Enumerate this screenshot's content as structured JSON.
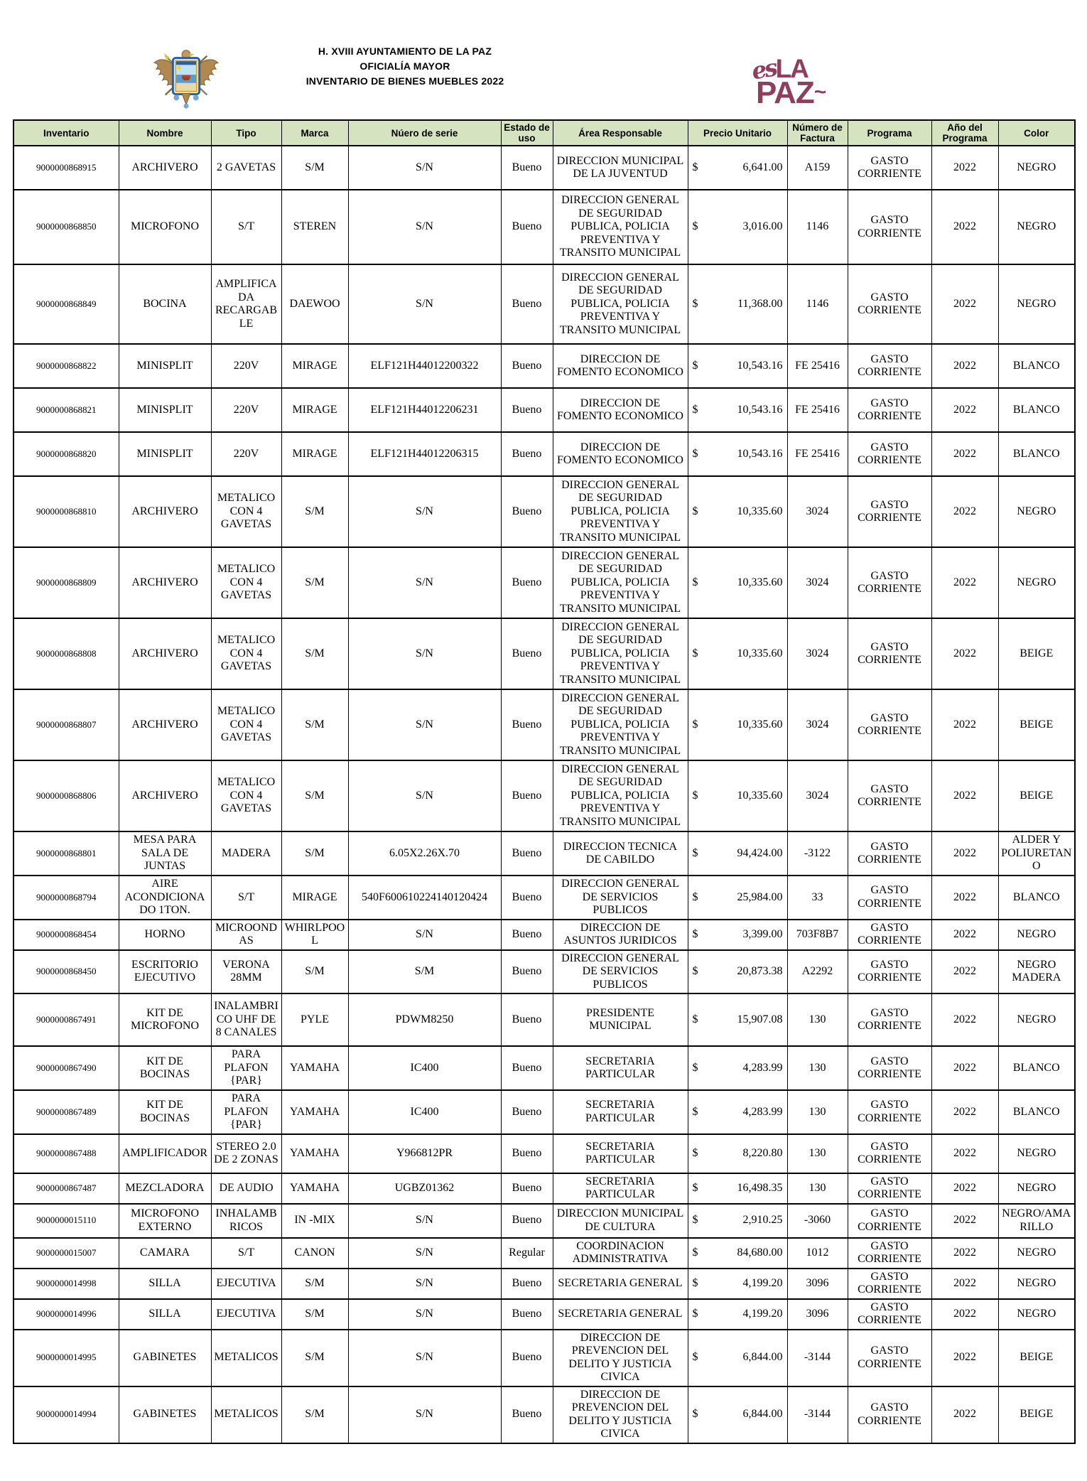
{
  "header": {
    "title_line1": "H. XVIII AYUNTAMIENTO DE LA PAZ",
    "title_line2": "OFICIALÍA MAYOR",
    "title_line3": "INVENTARIO DE BIENES MUEBLES 2022",
    "crest_name": "escudo-la-paz",
    "logo": {
      "part_es": "es",
      "part_la": "LA",
      "part_paz": "PAZ",
      "part_tilde": "~",
      "color": "#8d3f5d"
    }
  },
  "table": {
    "header_bg": "#d6e3c0",
    "currency_symbol": "$",
    "columns": [
      "Inventario",
      "Nombre",
      "Tipo",
      "Marca",
      "Núero de serie",
      "Estado de uso",
      "Área Responsable",
      "Precio Unitario",
      "Número de Factura",
      "Programa",
      "Año del Programa",
      "Color"
    ],
    "rows": [
      {
        "inventario": "9000000868915",
        "nombre": "ARCHIVERO",
        "tipo": "2 GAVETAS",
        "marca": "S/M",
        "serie": "S/N",
        "estado": "Bueno",
        "area": "DIRECCION MUNICIPAL DE LA JUVENTUD",
        "precio": "6,641.00",
        "factura": "A159",
        "programa": "GASTO CORRIENTE",
        "anio": "2022",
        "color": "NEGRO"
      },
      {
        "inventario": "9000000868850",
        "nombre": "MICROFONO",
        "tipo": "S/T",
        "marca": "STEREN",
        "serie": "S/N",
        "estado": "Bueno",
        "area": "DIRECCION GENERAL DE SEGURIDAD PUBLICA, POLICIA PREVENTIVA Y TRANSITO MUNICIPAL",
        "precio": "3,016.00",
        "factura": "1146",
        "programa": "GASTO CORRIENTE",
        "anio": "2022",
        "color": "NEGRO"
      },
      {
        "inventario": "9000000868849",
        "nombre": "BOCINA",
        "tipo": "AMPLIFICADA RECARGABLE",
        "marca": "DAEWOO",
        "serie": "S/N",
        "estado": "Bueno",
        "area": "DIRECCION GENERAL DE SEGURIDAD PUBLICA, POLICIA PREVENTIVA Y TRANSITO MUNICIPAL",
        "precio": "11,368.00",
        "factura": "1146",
        "programa": "GASTO CORRIENTE",
        "anio": "2022",
        "color": "NEGRO"
      },
      {
        "inventario": "9000000868822",
        "nombre": "MINISPLIT",
        "tipo": "220V",
        "marca": "MIRAGE",
        "serie": "ELF121H44012200322",
        "estado": "Bueno",
        "area": "DIRECCION DE FOMENTO ECONOMICO",
        "precio": "10,543.16",
        "factura": "FE 25416",
        "programa": "GASTO CORRIENTE",
        "anio": "2022",
        "color": "BLANCO"
      },
      {
        "inventario": "9000000868821",
        "nombre": "MINISPLIT",
        "tipo": "220V",
        "marca": "MIRAGE",
        "serie": "ELF121H44012206231",
        "estado": "Bueno",
        "area": "DIRECCION DE FOMENTO ECONOMICO",
        "precio": "10,543.16",
        "factura": "FE 25416",
        "programa": "GASTO CORRIENTE",
        "anio": "2022",
        "color": "BLANCO"
      },
      {
        "inventario": "9000000868820",
        "nombre": "MINISPLIT",
        "tipo": "220V",
        "marca": "MIRAGE",
        "serie": "ELF121H44012206315",
        "estado": "Bueno",
        "area": "DIRECCION DE FOMENTO ECONOMICO",
        "precio": "10,543.16",
        "factura": "FE 25416",
        "programa": "GASTO CORRIENTE",
        "anio": "2022",
        "color": "BLANCO"
      },
      {
        "inventario": "9000000868810",
        "nombre": "ARCHIVERO",
        "tipo": "METALICO CON 4 GAVETAS",
        "marca": "S/M",
        "serie": "S/N",
        "estado": "Bueno",
        "area": "DIRECCION GENERAL DE SEGURIDAD PUBLICA, POLICIA PREVENTIVA Y TRANSITO MUNICIPAL",
        "precio": "10,335.60",
        "factura": "3024",
        "programa": "GASTO CORRIENTE",
        "anio": "2022",
        "color": "NEGRO"
      },
      {
        "inventario": "9000000868809",
        "nombre": "ARCHIVERO",
        "tipo": "METALICO CON 4 GAVETAS",
        "marca": "S/M",
        "serie": "S/N",
        "estado": "Bueno",
        "area": "DIRECCION GENERAL DE SEGURIDAD PUBLICA, POLICIA PREVENTIVA Y TRANSITO MUNICIPAL",
        "precio": "10,335.60",
        "factura": "3024",
        "programa": "GASTO CORRIENTE",
        "anio": "2022",
        "color": "NEGRO"
      },
      {
        "inventario": "9000000868808",
        "nombre": "ARCHIVERO",
        "tipo": "METALICO CON 4 GAVETAS",
        "marca": "S/M",
        "serie": "S/N",
        "estado": "Bueno",
        "area": "DIRECCION GENERAL DE SEGURIDAD PUBLICA, POLICIA PREVENTIVA Y TRANSITO MUNICIPAL",
        "precio": "10,335.60",
        "factura": "3024",
        "programa": "GASTO CORRIENTE",
        "anio": "2022",
        "color": "BEIGE"
      },
      {
        "inventario": "9000000868807",
        "nombre": "ARCHIVERO",
        "tipo": "METALICO CON 4 GAVETAS",
        "marca": "S/M",
        "serie": "S/N",
        "estado": "Bueno",
        "area": "DIRECCION GENERAL DE SEGURIDAD PUBLICA, POLICIA PREVENTIVA Y TRANSITO MUNICIPAL",
        "precio": "10,335.60",
        "factura": "3024",
        "programa": "GASTO CORRIENTE",
        "anio": "2022",
        "color": "BEIGE"
      },
      {
        "inventario": "9000000868806",
        "nombre": "ARCHIVERO",
        "tipo": "METALICO CON 4 GAVETAS",
        "marca": "S/M",
        "serie": "S/N",
        "estado": "Bueno",
        "area": "DIRECCION GENERAL DE SEGURIDAD PUBLICA, POLICIA PREVENTIVA Y TRANSITO MUNICIPAL",
        "precio": "10,335.60",
        "factura": "3024",
        "programa": "GASTO CORRIENTE",
        "anio": "2022",
        "color": "BEIGE"
      },
      {
        "inventario": "9000000868801",
        "nombre": "MESA PARA SALA DE JUNTAS",
        "tipo": "MADERA",
        "marca": "S/M",
        "serie": "6.05X2.26X.70",
        "estado": "Bueno",
        "area": "DIRECCION TECNICA DE CABILDO",
        "precio": "94,424.00",
        "factura": "-3122",
        "programa": "GASTO CORRIENTE",
        "anio": "2022",
        "color": "ALDER Y POLIURETANO"
      },
      {
        "inventario": "9000000868794",
        "nombre": "AIRE ACONDICIONADO 1TON.",
        "tipo": "S/T",
        "marca": "MIRAGE",
        "serie": "540F600610224140120424",
        "estado": "Bueno",
        "area": "DIRECCION GENERAL DE SERVICIOS PUBLICOS",
        "precio": "25,984.00",
        "factura": "33",
        "programa": "GASTO CORRIENTE",
        "anio": "2022",
        "color": "BLANCO"
      },
      {
        "inventario": "9000000868454",
        "nombre": "HORNO",
        "tipo": "MICROONDAS",
        "marca": "WHIRLPOOL",
        "serie": "S/N",
        "estado": "Bueno",
        "area": "DIRECCION DE ASUNTOS JURIDICOS",
        "precio": "3,399.00",
        "factura": "703F8B7",
        "programa": "GASTO CORRIENTE",
        "anio": "2022",
        "color": "NEGRO"
      },
      {
        "inventario": "9000000868450",
        "nombre": "ESCRITORIO EJECUTIVO",
        "tipo": "VERONA 28MM",
        "marca": "S/M",
        "serie": "S/M",
        "estado": "Bueno",
        "area": "DIRECCION GENERAL DE SERVICIOS PUBLICOS",
        "precio": "20,873.38",
        "factura": "A2292",
        "programa": "GASTO CORRIENTE",
        "anio": "2022",
        "color": "NEGRO MADERA"
      },
      {
        "inventario": "9000000867491",
        "nombre": "KIT DE MICROFONO",
        "tipo": "INALAMBRICO UHF DE 8 CANALES",
        "marca": "PYLE",
        "serie": "PDWM8250",
        "estado": "Bueno",
        "area": "PRESIDENTE MUNICIPAL",
        "precio": "15,907.08",
        "factura": "130",
        "programa": "GASTO CORRIENTE",
        "anio": "2022",
        "color": "NEGRO"
      },
      {
        "inventario": "9000000867490",
        "nombre": "KIT DE BOCINAS",
        "tipo": "PARA PLAFON {PAR}",
        "marca": "YAMAHA",
        "serie": "IC400",
        "estado": "Bueno",
        "area": "SECRETARIA PARTICULAR",
        "precio": "4,283.99",
        "factura": "130",
        "programa": "GASTO CORRIENTE",
        "anio": "2022",
        "color": "BLANCO"
      },
      {
        "inventario": "9000000867489",
        "nombre": "KIT DE BOCINAS",
        "tipo": "PARA PLAFON {PAR}",
        "marca": "YAMAHA",
        "serie": "IC400",
        "estado": "Bueno",
        "area": "SECRETARIA PARTICULAR",
        "precio": "4,283.99",
        "factura": "130",
        "programa": "GASTO CORRIENTE",
        "anio": "2022",
        "color": "BLANCO"
      },
      {
        "inventario": "9000000867488",
        "nombre": "AMPLIFICADOR",
        "tipo": "STEREO 2.0 DE 2 ZONAS",
        "marca": "YAMAHA",
        "serie": "Y966812PR",
        "estado": "Bueno",
        "area": "SECRETARIA PARTICULAR",
        "precio": "8,220.80",
        "factura": "130",
        "programa": "GASTO CORRIENTE",
        "anio": "2022",
        "color": "NEGRO"
      },
      {
        "inventario": "9000000867487",
        "nombre": "MEZCLADORA",
        "tipo": "DE AUDIO",
        "marca": "YAMAHA",
        "serie": "UGBZ01362",
        "estado": "Bueno",
        "area": "SECRETARIA PARTICULAR",
        "precio": "16,498.35",
        "factura": "130",
        "programa": "GASTO CORRIENTE",
        "anio": "2022",
        "color": "NEGRO"
      },
      {
        "inventario": "9000000015110",
        "nombre": "MICROFONO EXTERNO",
        "tipo": "INHALAMBRICOS",
        "marca": "IN -MIX",
        "serie": "S/N",
        "estado": "Bueno",
        "area": "DIRECCION MUNICIPAL DE CULTURA",
        "precio": "2,910.25",
        "factura": "-3060",
        "programa": "GASTO CORRIENTE",
        "anio": "2022",
        "color": "NEGRO/AMARILLO"
      },
      {
        "inventario": "9000000015007",
        "nombre": "CAMARA",
        "tipo": "S/T",
        "marca": "CANON",
        "serie": "S/N",
        "estado": "Regular",
        "area": "COORDINACION ADMINISTRATIVA",
        "precio": "84,680.00",
        "factura": "1012",
        "programa": "GASTO CORRIENTE",
        "anio": "2022",
        "color": "NEGRO"
      },
      {
        "inventario": "9000000014998",
        "nombre": "SILLA",
        "tipo": "EJECUTIVA",
        "marca": "S/M",
        "serie": "S/N",
        "estado": "Bueno",
        "area": "SECRETARIA GENERAL",
        "precio": "4,199.20",
        "factura": "3096",
        "programa": "GASTO CORRIENTE",
        "anio": "2022",
        "color": "NEGRO"
      },
      {
        "inventario": "9000000014996",
        "nombre": "SILLA",
        "tipo": "EJECUTIVA",
        "marca": "S/M",
        "serie": "S/N",
        "estado": "Bueno",
        "area": "SECRETARIA GENERAL",
        "precio": "4,199.20",
        "factura": "3096",
        "programa": "GASTO CORRIENTE",
        "anio": "2022",
        "color": "NEGRO"
      },
      {
        "inventario": "9000000014995",
        "nombre": "GABINETES",
        "tipo": "METALICOS",
        "marca": "S/M",
        "serie": "S/N",
        "estado": "Bueno",
        "area": "DIRECCION DE PREVENCION DEL DELITO Y JUSTICIA CIVICA",
        "precio": "6,844.00",
        "factura": "-3144",
        "programa": "GASTO CORRIENTE",
        "anio": "2022",
        "color": "BEIGE"
      },
      {
        "inventario": "9000000014994",
        "nombre": "GABINETES",
        "tipo": "METALICOS",
        "marca": "S/M",
        "serie": "S/N",
        "estado": "Bueno",
        "area": "DIRECCION DE PREVENCION DEL DELITO Y JUSTICIA CIVICA",
        "precio": "6,844.00",
        "factura": "-3144",
        "programa": "GASTO CORRIENTE",
        "anio": "2022",
        "color": "BEIGE"
      }
    ]
  }
}
